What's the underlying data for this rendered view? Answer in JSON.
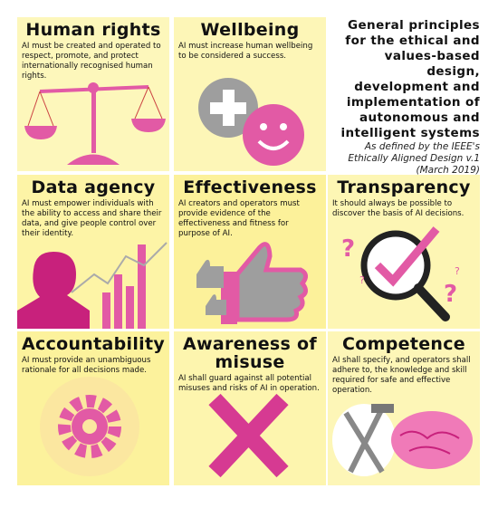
{
  "title": {
    "lines": [
      "General principles",
      "for the ethical and",
      "values-based design,",
      "development and",
      "implementation of",
      "autonomous and",
      "intelligent systems"
    ],
    "source": [
      "As defined by the IEEE's",
      "Ethically Aligned Design v.1",
      "(March 2019)"
    ]
  },
  "cells": [
    {
      "heading": "Human rights",
      "text": "AI must be created and operated to respect, promote, and protect internationally recognised human rights."
    },
    {
      "heading": "Wellbeing",
      "text": "AI must increase human wellbeing to be considered a success."
    },
    {
      "heading": "Data agency",
      "text": "AI must empower individuals with the ability to access and share their data, and give people control over their identity."
    },
    {
      "heading": "Effectiveness",
      "text": "AI creators and operators must provide evidence of the effectiveness and fitness for purpose of AI."
    },
    {
      "heading": "Transparency",
      "text": "It should always be possible to discover the basis of AI decisions."
    },
    {
      "heading": "Accountability",
      "text": "AI must provide an unambiguous rationale for all decisions made."
    },
    {
      "heading": "Awareness of misuse",
      "text": "AI shall guard against all potential misuses and risks of AI in operation."
    },
    {
      "heading": "Competence",
      "text": "AI shall specify, and operators shall adhere to, the knowledge and skill required for safe and effective operation."
    }
  ]
}
